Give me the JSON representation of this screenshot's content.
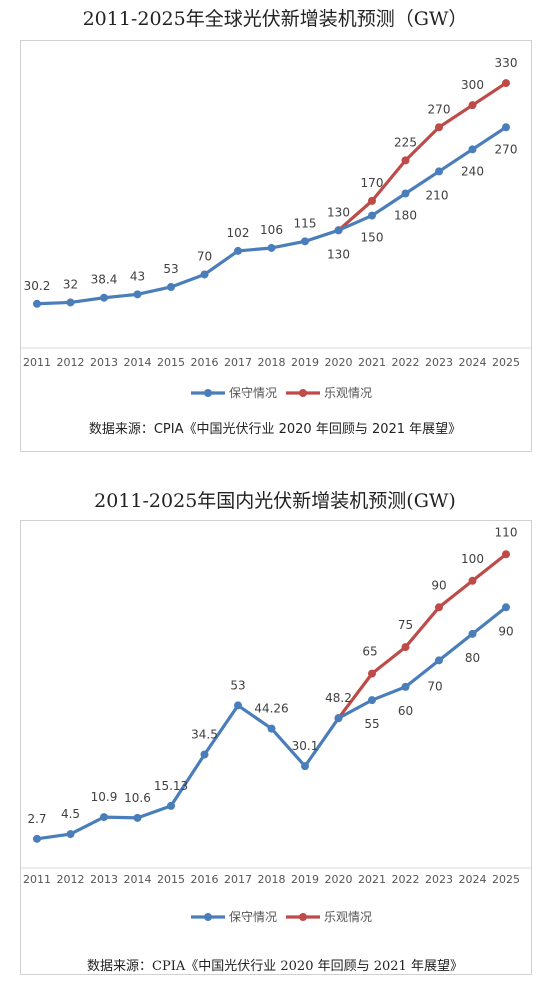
{
  "chart_data": [
    {
      "type": "line",
      "title": "2011-2025年全球光伏新增装机预测（GW）",
      "source": "数据来源：CPIA《中国光伏行业 2020 年回顾与 2021 年展望》",
      "categories": [
        "2011",
        "2012",
        "2013",
        "2014",
        "2015",
        "2016",
        "2017",
        "2018",
        "2019",
        "2020",
        "2021",
        "2022",
        "2023",
        "2024",
        "2025"
      ],
      "series": [
        {
          "name": "保守情况",
          "color": "#4a7ebb",
          "values": [
            30.2,
            32,
            38.4,
            43,
            53,
            70,
            102,
            106,
            115,
            130,
            150,
            180,
            210,
            240,
            270
          ],
          "labels": [
            "30.2",
            "32",
            "38.4",
            "43",
            "53",
            "70",
            "102",
            "106",
            "115",
            "130",
            "150",
            "180",
            "210",
            "240",
            "270"
          ]
        },
        {
          "name": "乐观情况",
          "color": "#be4b48",
          "values": [
            null,
            null,
            null,
            null,
            null,
            null,
            null,
            null,
            null,
            130,
            170,
            225,
            270,
            300,
            330
          ],
          "labels": [
            "",
            "",
            "",
            "",
            "",
            "",
            "",
            "",
            "",
            "",
            "170",
            "225",
            "270",
            "300",
            "330"
          ]
        }
      ],
      "ylim": [
        0,
        360
      ],
      "legend": "bottom",
      "grid": false
    },
    {
      "type": "line",
      "title": "2011-2025年国内光伏新增装机预测(GW)",
      "source": "数据来源：CPIA《中国光伏行业 2020 年回顾与 2021 年展望》",
      "categories": [
        "2011",
        "2012",
        "2013",
        "2014",
        "2015",
        "2016",
        "2017",
        "2018",
        "2019",
        "2020",
        "2021",
        "2022",
        "2023",
        "2024",
        "2025"
      ],
      "series": [
        {
          "name": "保守情况",
          "color": "#4a7ebb",
          "values": [
            2.7,
            4.5,
            10.9,
            10.6,
            15.13,
            34.5,
            53,
            44.26,
            30.1,
            48.2,
            55,
            60,
            70,
            80,
            90
          ],
          "labels": [
            "2.7",
            "4.5",
            "10.9",
            "10.6",
            "15.13",
            "34.5",
            "53",
            "44.26",
            "30.1",
            "48.2",
            "55",
            "60",
            "70",
            "80",
            "90"
          ]
        },
        {
          "name": "乐观情况",
          "color": "#be4b48",
          "values": [
            null,
            null,
            null,
            null,
            null,
            null,
            null,
            null,
            null,
            48.2,
            65,
            75,
            90,
            100,
            110
          ],
          "labels": [
            "",
            "",
            "",
            "",
            "",
            "",
            "",
            "",
            "",
            "",
            "65",
            "75",
            "90",
            "100",
            "110"
          ]
        }
      ],
      "ylim": [
        0,
        115
      ],
      "legend": "bottom",
      "grid": false
    }
  ]
}
